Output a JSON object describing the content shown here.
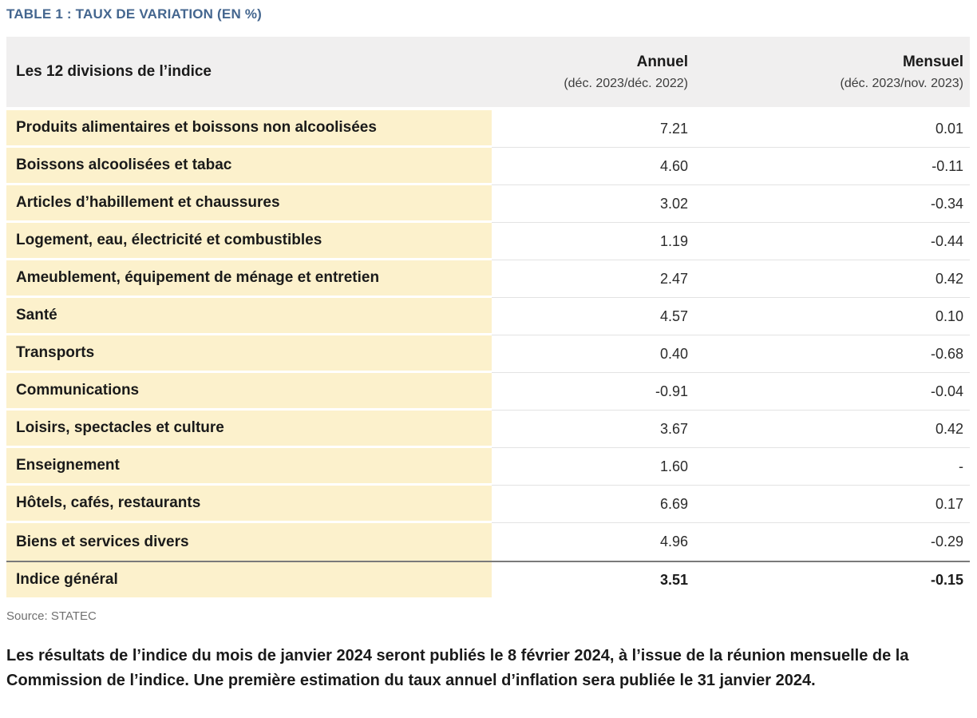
{
  "page": {
    "title": "TABLE 1 : TAUX DE VARIATION (EN %)",
    "source_label": "Source: STATEC",
    "footer_note": "Les résultats de l’indice du mois de janvier 2024 seront publiés le 8 février 2024, à l’issue de la réunion mensuelle de la Commission de l’indice. Une première estimation du taux annuel d’inflation sera publiée le 31 janvier 2024."
  },
  "colors": {
    "title_blue": "#44668F",
    "row_highlight_yellow": "#FCF1CC",
    "header_gray": "#F0EFEF",
    "total_rule_gray": "#7A7A7A"
  },
  "table": {
    "header": {
      "division_label": "Les 12 divisions de l’indice",
      "annual_label": "Annuel",
      "annual_sub": "(déc. 2023/déc. 2022)",
      "monthly_label": "Mensuel",
      "monthly_sub": "(déc. 2023/nov. 2023)"
    },
    "rows": [
      {
        "label": "Produits alimentaires et boissons non alcoolisées",
        "annual": "7.21",
        "monthly": "0.01"
      },
      {
        "label": "Boissons alcoolisées et tabac",
        "annual": "4.60",
        "monthly": "-0.11"
      },
      {
        "label": "Articles d’habillement et chaussures",
        "annual": "3.02",
        "monthly": "-0.34"
      },
      {
        "label": "Logement, eau, électricité et combustibles",
        "annual": "1.19",
        "monthly": "-0.44"
      },
      {
        "label": "Ameublement, équipement de ménage et entretien",
        "annual": "2.47",
        "monthly": "0.42"
      },
      {
        "label": "Santé",
        "annual": "4.57",
        "monthly": "0.10"
      },
      {
        "label": "Transports",
        "annual": "0.40",
        "monthly": "-0.68"
      },
      {
        "label": "Communications",
        "annual": "-0.91",
        "monthly": "-0.04"
      },
      {
        "label": "Loisirs, spectacles et culture",
        "annual": "3.67",
        "monthly": "0.42"
      },
      {
        "label": "Enseignement",
        "annual": "1.60",
        "monthly": "-"
      },
      {
        "label": "Hôtels, cafés, restaurants",
        "annual": "6.69",
        "monthly": "0.17"
      },
      {
        "label": "Biens et services divers",
        "annual": "4.96",
        "monthly": "-0.29"
      }
    ],
    "total_row": {
      "label": "Indice général",
      "annual": "3.51",
      "monthly": "-0.15"
    }
  }
}
